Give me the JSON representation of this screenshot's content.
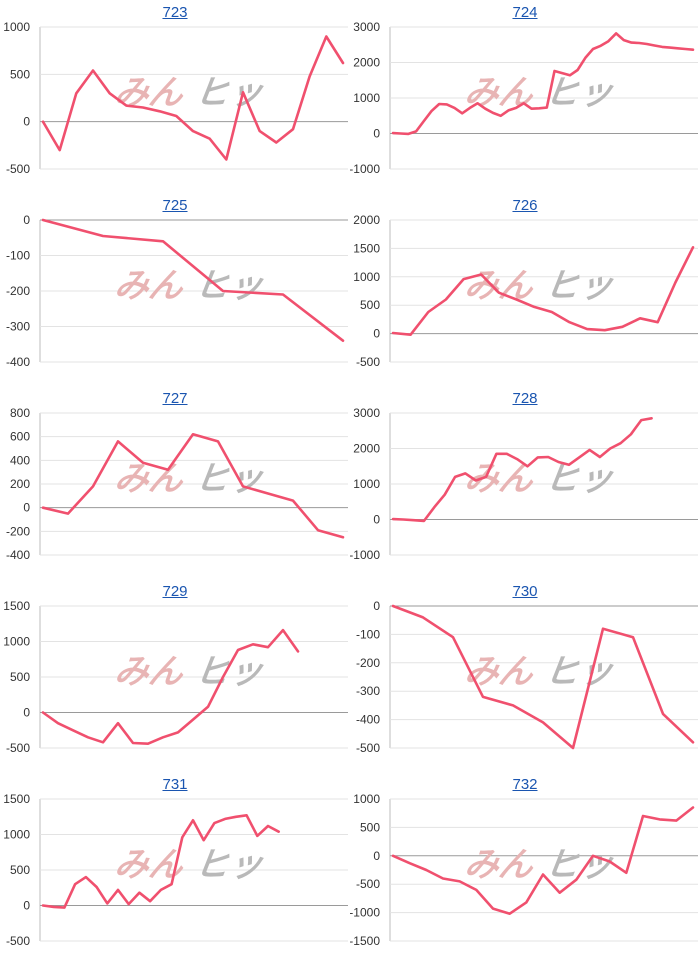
{
  "watermark": {
    "part1": "みんな",
    "part2": "ヒット"
  },
  "colors": {
    "line": "#f0506e",
    "grid": "#e3e3e3",
    "zero": "#9a9a9a",
    "axis": "#bdbdbd"
  },
  "chart_data": [
    {
      "type": "line",
      "title": "723",
      "ylim": [
        -500,
        1000
      ],
      "ticks": [
        1000,
        500,
        0,
        -500
      ],
      "x": [
        1,
        2,
        3,
        4,
        5,
        6,
        7,
        8,
        9,
        10,
        11,
        12,
        13,
        14,
        15,
        16,
        17,
        18,
        19
      ],
      "y": [
        0,
        -300,
        300,
        540,
        300,
        170,
        150,
        110,
        60,
        -100,
        -180,
        -400,
        310,
        -100,
        -220,
        -80,
        480,
        900,
        620
      ]
    },
    {
      "type": "line",
      "title": "724",
      "ylim": [
        -1000,
        3000
      ],
      "ticks": [
        3000,
        2000,
        1000,
        0,
        -1000
      ],
      "x": [
        1,
        2,
        3,
        4,
        5,
        6,
        7,
        8,
        9,
        10,
        11,
        12,
        13,
        14,
        15,
        16,
        17,
        18,
        19,
        20,
        21,
        22,
        23,
        24,
        25,
        26,
        27,
        28,
        29,
        30,
        31,
        32,
        33,
        34,
        35,
        36,
        37,
        38,
        39,
        40
      ],
      "y": [
        10,
        0,
        -10,
        60,
        350,
        630,
        830,
        820,
        720,
        570,
        720,
        850,
        700,
        580,
        500,
        650,
        720,
        850,
        700,
        710,
        730,
        1760,
        1700,
        1640,
        1790,
        2130,
        2380,
        2470,
        2600,
        2820,
        2630,
        2560,
        2550,
        2520,
        2480,
        2440,
        2420,
        2400,
        2380,
        2360
      ]
    },
    {
      "type": "line",
      "title": "725",
      "ylim": [
        -400,
        0
      ],
      "ticks": [
        0,
        -100,
        -200,
        -300,
        -400
      ],
      "x": [
        1,
        2,
        3,
        4,
        5,
        6
      ],
      "y": [
        0,
        -45,
        -60,
        -200,
        -210,
        -340
      ]
    },
    {
      "type": "line",
      "title": "726",
      "ylim": [
        -500,
        2000
      ],
      "ticks": [
        2000,
        1500,
        1000,
        500,
        0,
        -500
      ],
      "x": [
        1,
        2,
        3,
        4,
        5,
        6,
        7,
        8,
        9,
        10,
        11,
        12,
        13,
        14,
        15,
        16,
        17,
        18
      ],
      "y": [
        10,
        -20,
        380,
        600,
        960,
        1040,
        720,
        600,
        470,
        380,
        200,
        80,
        60,
        120,
        270,
        200,
        900,
        1520
      ]
    },
    {
      "type": "line",
      "title": "727",
      "ylim": [
        -400,
        800
      ],
      "ticks": [
        800,
        600,
        400,
        200,
        0,
        -200,
        -400
      ],
      "x": [
        1,
        2,
        3,
        4,
        5,
        6,
        7,
        8,
        9,
        10,
        11,
        12,
        13
      ],
      "y": [
        0,
        -50,
        180,
        560,
        380,
        320,
        620,
        560,
        180,
        120,
        60,
        -190,
        -250
      ]
    },
    {
      "type": "line",
      "title": "728",
      "ylim": [
        -1000,
        3000
      ],
      "ticks": [
        3000,
        2000,
        1000,
        0,
        -1000
      ],
      "x": [
        1,
        2,
        3,
        4,
        5,
        6,
        7,
        8,
        9,
        10,
        11,
        12,
        13,
        14,
        15,
        16,
        17,
        18,
        19,
        20,
        21,
        22,
        23,
        24,
        25,
        26,
        27,
        28,
        29,
        30
      ],
      "y": [
        10,
        0,
        -20,
        -40,
        350,
        700,
        1200,
        1300,
        1100,
        1200,
        1850,
        1850,
        1700,
        1500,
        1750,
        1760,
        1620,
        1540,
        1750,
        1960,
        1760,
        2000,
        2150,
        2400,
        2800,
        2850,
        null,
        null,
        null,
        null
      ]
    },
    {
      "type": "line",
      "title": "729",
      "ylim": [
        -500,
        1500
      ],
      "ticks": [
        1500,
        1000,
        500,
        0,
        -500
      ],
      "x": [
        1,
        2,
        3,
        4,
        5,
        6,
        7,
        8,
        9,
        10,
        11,
        12,
        13,
        14,
        15,
        16,
        17,
        18,
        19,
        20,
        21
      ],
      "y": [
        0,
        -150,
        -250,
        -350,
        -420,
        -150,
        -430,
        -440,
        -350,
        -280,
        -100,
        80,
        500,
        880,
        960,
        920,
        1160,
        860,
        null,
        null,
        null
      ]
    },
    {
      "type": "line",
      "title": "730",
      "ylim": [
        -500,
        0
      ],
      "ticks": [
        0,
        -100,
        -200,
        -300,
        -400,
        -500
      ],
      "x": [
        1,
        2,
        3,
        4,
        5,
        6,
        7,
        8,
        9,
        10,
        11
      ],
      "y": [
        0,
        -40,
        -110,
        -320,
        -350,
        -410,
        -500,
        -80,
        -110,
        -380,
        -480
      ]
    },
    {
      "type": "line",
      "title": "731",
      "ylim": [
        -500,
        1500
      ],
      "ticks": [
        1500,
        1000,
        500,
        0,
        -500
      ],
      "x": [
        1,
        2,
        3,
        4,
        5,
        6,
        7,
        8,
        9,
        10,
        11,
        12,
        13,
        14,
        15,
        16,
        17,
        18,
        19,
        20,
        21,
        22,
        23,
        24,
        25,
        26,
        27,
        28,
        29
      ],
      "y": [
        0,
        -20,
        -30,
        300,
        400,
        260,
        30,
        220,
        20,
        180,
        60,
        220,
        300,
        960,
        1200,
        920,
        1160,
        1220,
        1250,
        1270,
        980,
        1120,
        1040,
        null,
        null,
        null,
        null,
        null,
        null
      ]
    },
    {
      "type": "line",
      "title": "732",
      "ylim": [
        -1500,
        1000
      ],
      "ticks": [
        1000,
        500,
        0,
        -500,
        -1000,
        -1500
      ],
      "x": [
        1,
        2,
        3,
        4,
        5,
        6,
        7,
        8,
        9,
        10,
        11,
        12,
        13,
        14,
        15,
        16,
        17,
        18,
        19
      ],
      "y": [
        0,
        -130,
        -250,
        -400,
        -450,
        -600,
        -930,
        -1020,
        -820,
        -330,
        -650,
        -420,
        0,
        -100,
        -300,
        700,
        640,
        620,
        850
      ]
    }
  ]
}
